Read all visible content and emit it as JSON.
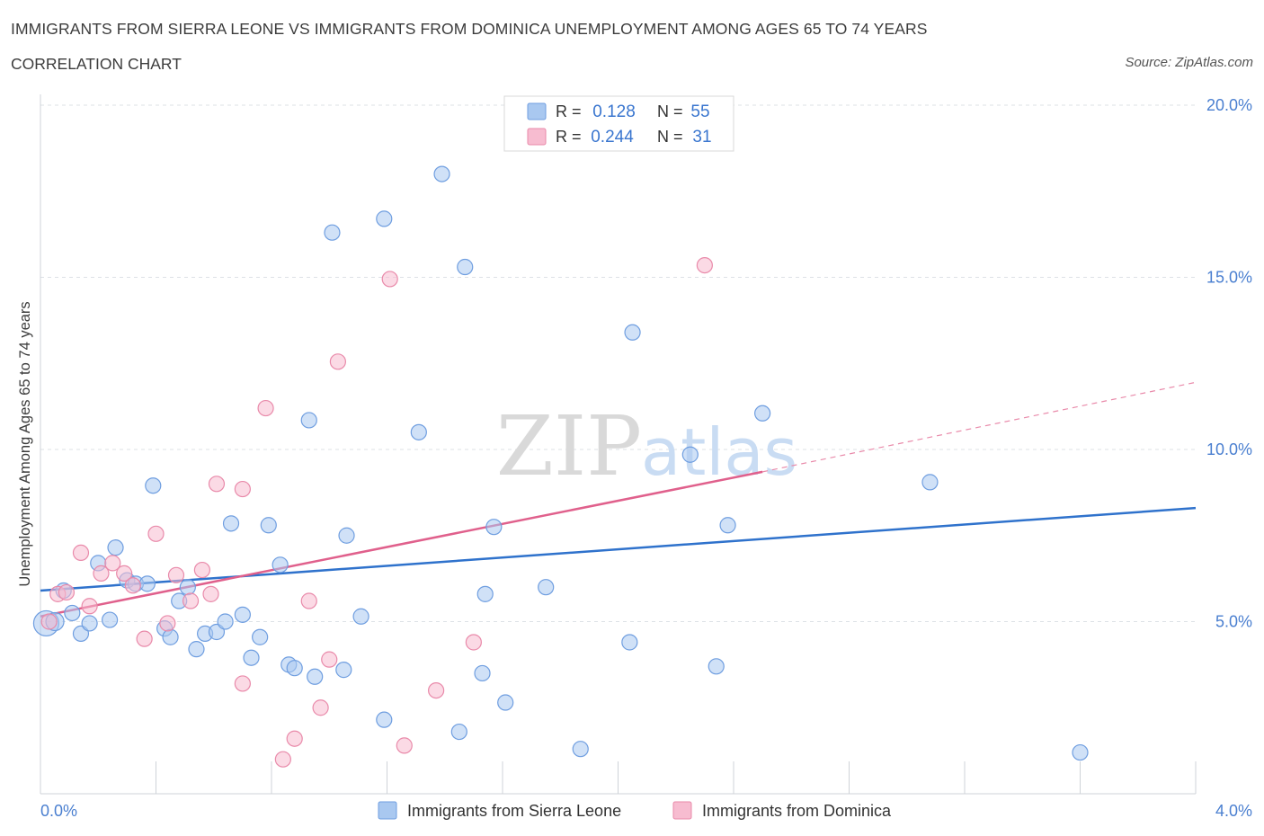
{
  "header": {
    "title": "IMMIGRANTS FROM SIERRA LEONE VS IMMIGRANTS FROM DOMINICA UNEMPLOYMENT AMONG AGES 65 TO 74 YEARS",
    "subtitle": "CORRELATION CHART",
    "source": "Source: ZipAtlas.com"
  },
  "watermark": {
    "zip": "ZIP",
    "atlas": "atlas"
  },
  "colors": {
    "blue_fill": "#a9c8f0",
    "blue_stroke": "#6f9ee0",
    "blue_line": "#2f72cc",
    "pink_fill": "#f7bcd0",
    "pink_stroke": "#e98aaa",
    "pink_line": "#e0608c",
    "axis_text": "#4a7fd0",
    "grid": "#dde1e6"
  },
  "chart_data": {
    "type": "scatter",
    "title": "IMMIGRANTS FROM SIERRA LEONE VS IMMIGRANTS FROM DOMINICA UNEMPLOYMENT AMONG AGES 65 TO 74 YEARS",
    "xlabel": "",
    "ylabel": "Unemployment Among Ages 65 to 74 years",
    "xlim": [
      0,
      4.0
    ],
    "ylim": [
      0,
      20.0
    ],
    "x_tick_labels": [
      {
        "value": 0,
        "label": "0.0%"
      },
      {
        "value": 4.0,
        "label": "4.0%"
      }
    ],
    "y_tick_labels": [
      {
        "value": 5,
        "label": "5.0%"
      },
      {
        "value": 10,
        "label": "10.0%"
      },
      {
        "value": 15,
        "label": "15.0%"
      },
      {
        "value": 20,
        "label": "20.0%"
      }
    ],
    "grid": true,
    "legend_position": "top-center",
    "stats": [
      {
        "r_label": "R =",
        "r_value": "0.128",
        "n_label": "N =",
        "n_value": "55"
      },
      {
        "r_label": "R =",
        "r_value": "0.244",
        "n_label": "N =",
        "n_value": "31"
      }
    ],
    "series": [
      {
        "name": "Immigrants from Sierra Leone",
        "color": "#a9c8f0",
        "trend": {
          "x": [
            0,
            4.0
          ],
          "y": [
            5.9,
            8.3
          ]
        },
        "points": [
          [
            0.02,
            4.95
          ],
          [
            0.05,
            5.0
          ],
          [
            0.08,
            5.9
          ],
          [
            0.11,
            5.25
          ],
          [
            0.14,
            4.65
          ],
          [
            0.17,
            4.95
          ],
          [
            0.2,
            6.7
          ],
          [
            0.24,
            5.05
          ],
          [
            0.26,
            7.15
          ],
          [
            0.3,
            6.2
          ],
          [
            0.33,
            6.1
          ],
          [
            0.37,
            6.1
          ],
          [
            0.39,
            8.95
          ],
          [
            0.43,
            4.8
          ],
          [
            0.45,
            4.55
          ],
          [
            0.48,
            5.6
          ],
          [
            0.51,
            6.0
          ],
          [
            0.54,
            4.2
          ],
          [
            0.57,
            4.65
          ],
          [
            0.61,
            4.7
          ],
          [
            0.64,
            5.0
          ],
          [
            0.66,
            7.85
          ],
          [
            0.7,
            5.2
          ],
          [
            0.73,
            3.95
          ],
          [
            0.76,
            4.55
          ],
          [
            0.79,
            7.8
          ],
          [
            0.83,
            6.65
          ],
          [
            0.86,
            3.75
          ],
          [
            0.88,
            3.65
          ],
          [
            0.93,
            10.85
          ],
          [
            0.95,
            3.4
          ],
          [
            1.01,
            16.3
          ],
          [
            1.05,
            3.6
          ],
          [
            1.06,
            7.5
          ],
          [
            1.11,
            5.15
          ],
          [
            1.19,
            16.7
          ],
          [
            1.19,
            2.15
          ],
          [
            1.31,
            10.5
          ],
          [
            1.39,
            18.0
          ],
          [
            1.45,
            1.8
          ],
          [
            1.47,
            15.3
          ],
          [
            1.53,
            3.5
          ],
          [
            1.54,
            5.8
          ],
          [
            1.57,
            7.75
          ],
          [
            1.61,
            2.65
          ],
          [
            1.75,
            6.0
          ],
          [
            1.87,
            1.3
          ],
          [
            2.04,
            4.4
          ],
          [
            2.05,
            13.4
          ],
          [
            2.25,
            9.85
          ],
          [
            2.34,
            3.7
          ],
          [
            2.38,
            7.8
          ],
          [
            2.5,
            11.05
          ],
          [
            3.08,
            9.05
          ],
          [
            3.6,
            1.2
          ]
        ]
      },
      {
        "name": "Immigrants from Dominica",
        "color": "#f7bcd0",
        "trend": {
          "x": [
            0,
            2.5
          ],
          "y": [
            5.15,
            9.35
          ]
        },
        "trend_extension": {
          "x": [
            2.5,
            4.0
          ],
          "y": [
            9.35,
            11.95
          ]
        },
        "points": [
          [
            0.03,
            5.0
          ],
          [
            0.06,
            5.8
          ],
          [
            0.09,
            5.85
          ],
          [
            0.14,
            7.0
          ],
          [
            0.17,
            5.45
          ],
          [
            0.21,
            6.4
          ],
          [
            0.25,
            6.7
          ],
          [
            0.29,
            6.4
          ],
          [
            0.32,
            6.05
          ],
          [
            0.36,
            4.5
          ],
          [
            0.4,
            7.55
          ],
          [
            0.44,
            4.95
          ],
          [
            0.47,
            6.35
          ],
          [
            0.52,
            5.6
          ],
          [
            0.56,
            6.5
          ],
          [
            0.59,
            5.8
          ],
          [
            0.61,
            9.0
          ],
          [
            0.7,
            3.2
          ],
          [
            0.7,
            8.85
          ],
          [
            0.78,
            11.2
          ],
          [
            0.84,
            1.0
          ],
          [
            0.88,
            1.6
          ],
          [
            0.93,
            5.6
          ],
          [
            0.97,
            2.5
          ],
          [
            1.0,
            3.9
          ],
          [
            1.03,
            12.55
          ],
          [
            1.21,
            14.95
          ],
          [
            1.26,
            1.4
          ],
          [
            1.37,
            3.0
          ],
          [
            1.5,
            4.4
          ],
          [
            2.3,
            15.35
          ]
        ]
      }
    ]
  }
}
